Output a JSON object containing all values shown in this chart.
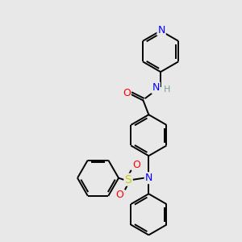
{
  "bg_color": "#e8e8e8",
  "bond_color": "#000000",
  "atom_colors": {
    "N": "#0000ff",
    "O": "#ff0000",
    "S": "#cccc00",
    "H": "#7a9e9f",
    "C": "#000000"
  },
  "figsize": [
    3.0,
    3.0
  ],
  "dpi": 100
}
